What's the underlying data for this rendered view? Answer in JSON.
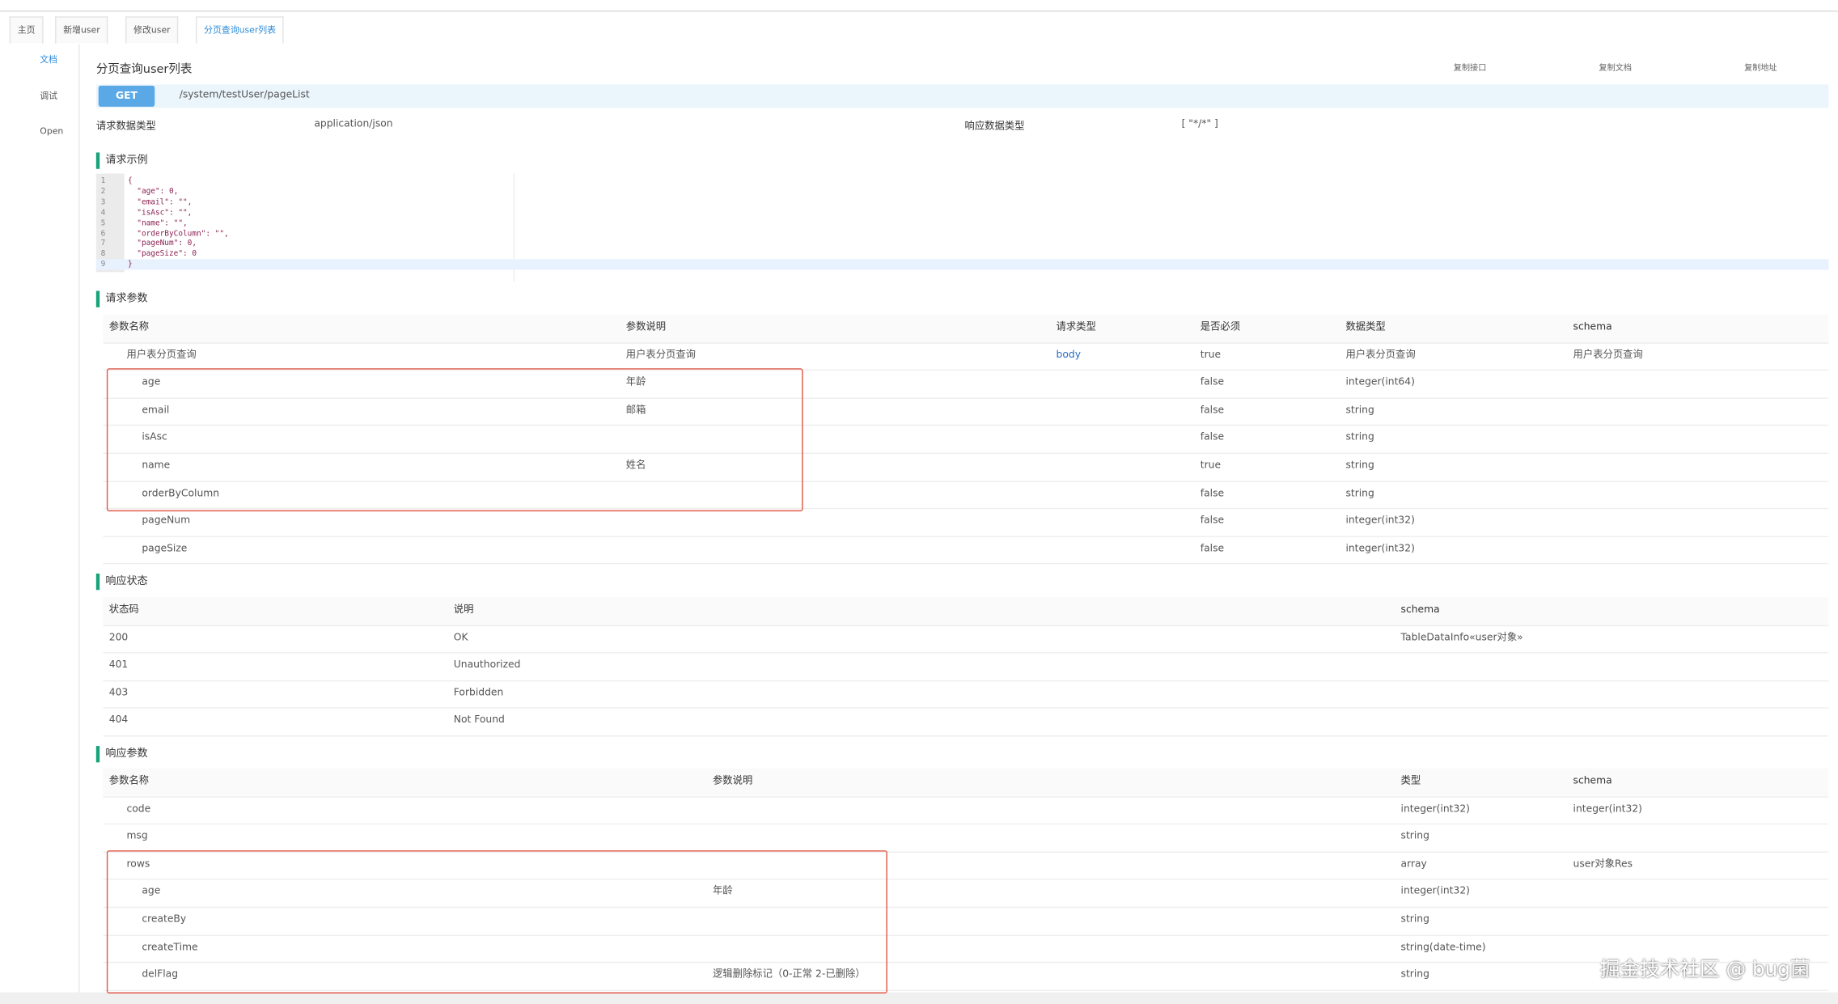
{
  "tabs": [
    "主页",
    "新增user",
    "修改user",
    "分页查询user列表"
  ],
  "sidebar": [
    "文档",
    "调试",
    "Open"
  ],
  "header": {
    "title": "分页查询user列表",
    "actions": [
      "复制接口",
      "复制文档",
      "复制地址"
    ],
    "method": "GET",
    "path": "/system/testUser/pageList",
    "request_type_label": "请求数据类型",
    "request_type": "application/json",
    "response_type_label": "响应数据类型",
    "response_type": "[ \"*/*\" ]"
  },
  "request_example": {
    "title": "请求示例",
    "line_numbers": [
      1,
      2,
      3,
      4,
      5,
      6,
      7,
      8,
      9
    ],
    "lines": [
      "{",
      "  \"age\": 0,",
      "  \"email\": \"\",",
      "  \"isAsc\": \"\",",
      "  \"name\": \"\",",
      "  \"orderByColumn\": \"\",",
      "  \"pageNum\": 0,",
      "  \"pageSize\": 0",
      "}"
    ]
  },
  "request_params": {
    "title": "请求参数",
    "columns": [
      "参数名称",
      "参数说明",
      "请求类型",
      "是否必须",
      "数据类型",
      "schema"
    ],
    "rows": [
      [
        "用户表分页查询",
        "用户表分页查询",
        "body",
        "true",
        "用户表分页查询",
        "用户表分页查询"
      ],
      [
        "age",
        "年龄",
        null,
        "false",
        "integer(int64)",
        null
      ],
      [
        "email",
        "邮箱",
        null,
        "false",
        "string",
        null
      ],
      [
        "isAsc",
        null,
        null,
        "false",
        "string",
        null
      ],
      [
        "name",
        "姓名",
        null,
        "true",
        "string",
        null
      ],
      [
        "orderByColumn",
        null,
        null,
        "false",
        "string",
        null
      ],
      [
        "pageNum",
        null,
        null,
        "false",
        "integer(int32)",
        null
      ],
      [
        "pageSize",
        null,
        null,
        "false",
        "integer(int32)",
        null
      ]
    ]
  },
  "response_status": {
    "title": "响应状态",
    "columns": [
      "状态码",
      "说明",
      "schema"
    ],
    "rows": [
      [
        "200",
        "OK",
        "TableDataInfo«user对象»"
      ],
      [
        "401",
        "Unauthorized",
        null
      ],
      [
        "403",
        "Forbidden",
        null
      ],
      [
        "404",
        "Not Found",
        null
      ]
    ]
  },
  "response_params": {
    "title": "响应参数",
    "columns": [
      "参数名称",
      "参数说明",
      "类型",
      "schema"
    ],
    "rows": [
      [
        "code",
        null,
        "integer(int32)",
        "integer(int32)"
      ],
      [
        "msg",
        null,
        "string",
        null
      ],
      [
        "rows",
        null,
        "array",
        "user对象Res"
      ],
      [
        "age",
        "年龄",
        "integer(int32)",
        null
      ],
      [
        "createBy",
        null,
        "string",
        null
      ],
      [
        "createTime",
        null,
        "string(date-time)",
        null
      ],
      [
        "delFlag",
        "逻辑删除标记（0-正常 2-已删除）",
        "string",
        null
      ]
    ]
  },
  "watermark": "掘金技术社区 @ bug菌"
}
